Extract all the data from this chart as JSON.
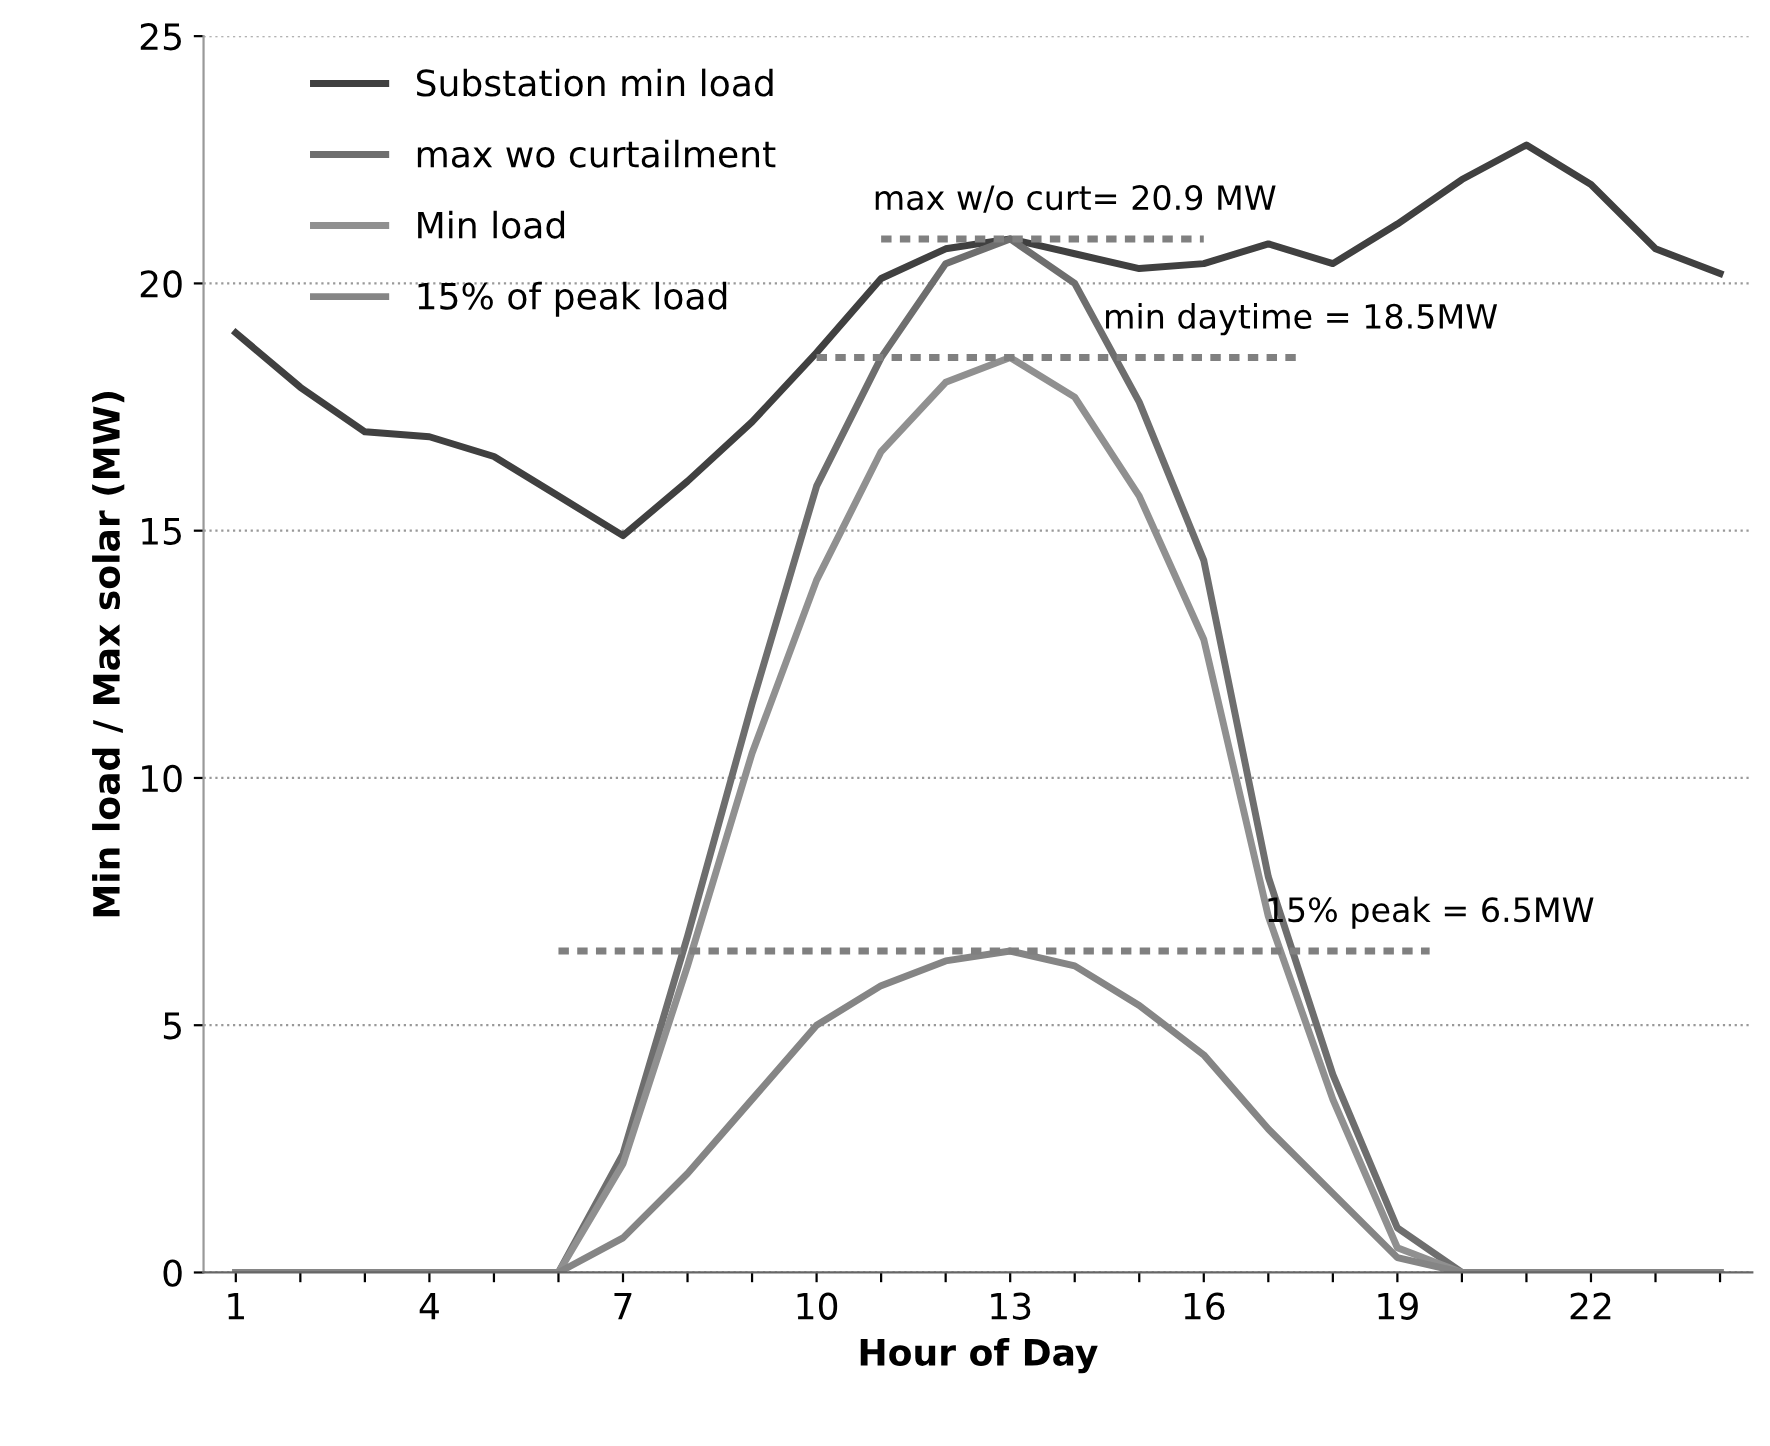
{
  "chart_data": {
    "type": "line",
    "xlabel": "Hour of Day",
    "ylabel": "Min load / Max solar (MW)",
    "x": [
      1,
      2,
      3,
      4,
      5,
      6,
      7,
      8,
      9,
      10,
      11,
      12,
      13,
      14,
      15,
      16,
      17,
      18,
      19,
      20,
      21,
      22,
      23,
      24
    ],
    "series": [
      {
        "name": "Substation min load",
        "color": "#404040",
        "values": [
          19.0,
          17.9,
          17.0,
          16.9,
          16.5,
          15.7,
          14.9,
          16.0,
          17.2,
          18.6,
          20.1,
          20.7,
          20.9,
          20.6,
          20.3,
          20.4,
          20.8,
          20.4,
          21.2,
          22.1,
          22.8,
          22.0,
          20.7,
          20.2
        ]
      },
      {
        "name": "max wo curtailment",
        "color": "#6e6e6e",
        "values": [
          0,
          0,
          0,
          0,
          0,
          0,
          2.4,
          6.8,
          11.5,
          15.9,
          18.5,
          20.4,
          20.9,
          20.0,
          17.6,
          14.4,
          8.0,
          4.0,
          0.9,
          0,
          0,
          0,
          0,
          0
        ]
      },
      {
        "name": "Min load",
        "color": "#909090",
        "values": [
          0,
          0,
          0,
          0,
          0,
          0,
          2.2,
          6.2,
          10.5,
          14.0,
          16.6,
          18.0,
          18.5,
          17.7,
          15.7,
          12.8,
          7.2,
          3.5,
          0.5,
          0,
          0,
          0,
          0,
          0
        ]
      },
      {
        "name": "15% of peak load",
        "color": "#858585",
        "values": [
          0,
          0,
          0,
          0,
          0,
          0,
          0.7,
          2.0,
          3.5,
          5.0,
          5.8,
          6.3,
          6.5,
          6.2,
          5.4,
          4.4,
          2.9,
          1.6,
          0.3,
          0,
          0,
          0,
          0,
          0
        ]
      },
      {
        "color": "#808080",
        "line_style": "dashed",
        "x": [
          11,
          16
        ],
        "values": [
          20.9,
          20.9
        ]
      },
      {
        "color": "#808080",
        "line_style": "dashed",
        "x": [
          10,
          17.5
        ],
        "values": [
          18.5,
          18.5
        ]
      },
      {
        "color": "#808080",
        "line_style": "dashed",
        "x": [
          6,
          19.5
        ],
        "values": [
          6.5,
          6.5
        ]
      }
    ],
    "annotations": [
      {
        "text": "max w/o curt= 20.9 MW",
        "x": 14,
        "y": 20.9
      },
      {
        "text": "min daytime = 18.5MW",
        "x": 17.5,
        "y": 18.5
      },
      {
        "text": "15% peak = 6.5MW",
        "x": 19.5,
        "y": 6.5
      }
    ],
    "xlim": [
      0.5,
      24.5
    ],
    "ylim": [
      0,
      25
    ],
    "xticks": [
      1,
      {
        "value": 2,
        "label": null
      },
      {
        "value": 3,
        "label": null
      },
      4,
      {
        "value": 5,
        "label": null
      },
      {
        "value": 6,
        "label": null
      },
      7,
      {
        "value": 8,
        "label": null
      },
      {
        "value": 9,
        "label": null
      },
      10,
      {
        "value": 11,
        "label": null
      },
      {
        "value": 12,
        "label": null
      },
      13,
      {
        "value": 14,
        "label": null
      },
      {
        "value": 15,
        "label": null
      },
      16,
      {
        "value": 17,
        "label": null
      },
      {
        "value": 18,
        "label": null
      },
      19,
      {
        "value": 20,
        "label": null
      },
      {
        "value": 21,
        "label": null
      },
      22,
      {
        "value": 23,
        "label": null
      },
      {
        "value": 24,
        "label": null
      }
    ],
    "yticks": [
      0,
      5,
      10,
      15,
      20,
      25
    ],
    "grid": "y",
    "legend": "top left",
    "marker": "none",
    "line_style": "solid"
  }
}
